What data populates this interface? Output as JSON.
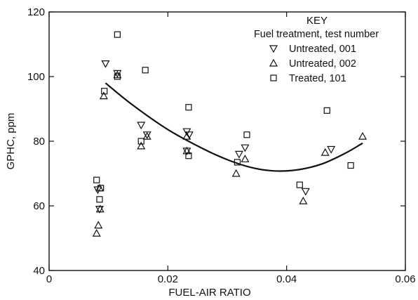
{
  "chart_data": {
    "type": "scatter",
    "title": "",
    "xlabel": "FUEL-AIR RATIO",
    "ylabel": "GPHC, ppm",
    "xlim": [
      0,
      0.06
    ],
    "ylim": [
      40,
      120
    ],
    "x_ticks": [
      {
        "value": 0,
        "label": "0"
      },
      {
        "value": 0.02,
        "label": "0.02"
      },
      {
        "value": 0.04,
        "label": "0.04"
      },
      {
        "value": 0.06,
        "label": "0.06"
      }
    ],
    "y_ticks": [
      {
        "value": 40,
        "label": "40"
      },
      {
        "value": 60,
        "label": "60"
      },
      {
        "value": 80,
        "label": "80"
      },
      {
        "value": 100,
        "label": "100"
      },
      {
        "value": 120,
        "label": "120"
      }
    ],
    "legend": {
      "title": "KEY",
      "subtitle": "Fuel treatment, test number",
      "position": "top-right"
    },
    "series": [
      {
        "name": "Untreated, 001",
        "marker": "triangle-down",
        "points": [
          [
            0.0082,
            65
          ],
          [
            0.0085,
            59
          ],
          [
            0.0095,
            104
          ],
          [
            0.0115,
            101
          ],
          [
            0.0155,
            85
          ],
          [
            0.0165,
            82
          ],
          [
            0.0232,
            83
          ],
          [
            0.0236,
            82
          ],
          [
            0.0232,
            77
          ],
          [
            0.032,
            76
          ],
          [
            0.033,
            78
          ],
          [
            0.0432,
            64.5
          ],
          [
            0.0475,
            77.5
          ]
        ]
      },
      {
        "name": "Untreated, 002",
        "marker": "triangle-up",
        "points": [
          [
            0.008,
            51.5
          ],
          [
            0.0083,
            54
          ],
          [
            0.0086,
            59
          ],
          [
            0.0085,
            65.5
          ],
          [
            0.0092,
            94
          ],
          [
            0.0115,
            100.5
          ],
          [
            0.0155,
            78.5
          ],
          [
            0.0165,
            81.5
          ],
          [
            0.0232,
            77
          ],
          [
            0.0232,
            81.5
          ],
          [
            0.0315,
            70
          ],
          [
            0.033,
            74.5
          ],
          [
            0.0428,
            61.5
          ],
          [
            0.0465,
            76.5
          ],
          [
            0.0528,
            81.5
          ]
        ]
      },
      {
        "name": "Treated, 101",
        "marker": "square",
        "points": [
          [
            0.008,
            68
          ],
          [
            0.0085,
            62
          ],
          [
            0.0087,
            65.5
          ],
          [
            0.0093,
            95.5
          ],
          [
            0.0115,
            113
          ],
          [
            0.0115,
            100
          ],
          [
            0.0155,
            80
          ],
          [
            0.0162,
            102
          ],
          [
            0.0235,
            90.5
          ],
          [
            0.0235,
            75.5
          ],
          [
            0.0317,
            73.5
          ],
          [
            0.0333,
            82
          ],
          [
            0.0422,
            66.5
          ],
          [
            0.0468,
            89.5
          ],
          [
            0.0508,
            72.5
          ]
        ]
      }
    ],
    "fit_curve": [
      [
        0.0095,
        98
      ],
      [
        0.014,
        91.3
      ],
      [
        0.02,
        83.6
      ],
      [
        0.026,
        77.6
      ],
      [
        0.03,
        74.3
      ],
      [
        0.034,
        71.9
      ],
      [
        0.038,
        70.8
      ],
      [
        0.042,
        71.2
      ],
      [
        0.046,
        73.0
      ],
      [
        0.05,
        76.4
      ],
      [
        0.0528,
        79.4
      ]
    ],
    "grid": false
  }
}
